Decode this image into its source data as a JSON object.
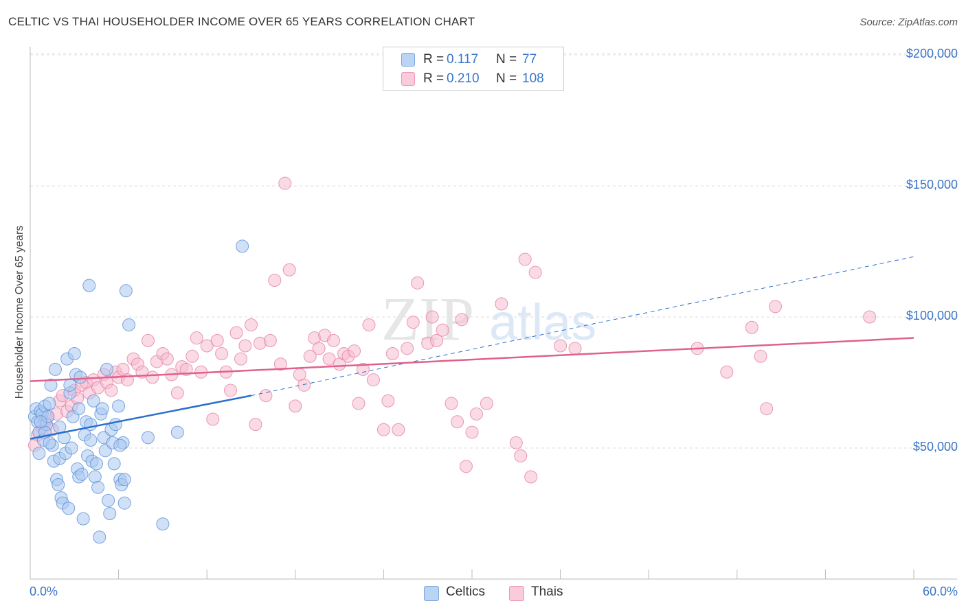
{
  "header": {
    "title": "CELTIC VS THAI HOUSEHOLDER INCOME OVER 65 YEARS CORRELATION CHART",
    "source": "Source: ZipAtlas.com"
  },
  "watermark": {
    "zip": "ZIP",
    "atlas": "atlas"
  },
  "legend_top": {
    "rows": [
      {
        "r_label": "R =",
        "r_value": "0.117",
        "n_label": "N =",
        "n_value": "77"
      },
      {
        "r_label": "R =",
        "r_value": "0.210",
        "n_label": "N =",
        "n_value": "108"
      }
    ]
  },
  "legend_bottom": {
    "items": [
      "Celtics",
      "Thais"
    ]
  },
  "colors": {
    "celtic_fill": "#a9c8f0",
    "celtic_stroke": "#5a8fd6",
    "celtic_line": "#2a6fcc",
    "thai_fill": "#f6bcd0",
    "thai_stroke": "#e57fa3",
    "thai_line": "#e0608e",
    "axis_text": "#3a75c4",
    "grid": "#dddddd"
  },
  "chart_data": {
    "type": "scatter",
    "title": "CELTIC VS THAI HOUSEHOLDER INCOME OVER 65 YEARS CORRELATION CHART",
    "xlabel": "",
    "ylabel": "Householder Income Over 65 years",
    "xlim": [
      0,
      60
    ],
    "ylim": [
      0,
      210000
    ],
    "x_tick_labels": [
      "0.0%",
      "60.0%"
    ],
    "y_ticks": [
      50000,
      100000,
      150000,
      200000
    ],
    "y_tick_labels": [
      "$50,000",
      "$100,000",
      "$150,000",
      "$200,000"
    ],
    "grid": true,
    "legend_position": "top-center",
    "series": [
      {
        "name": "Celtics",
        "R": 0.117,
        "N": 77,
        "trend": {
          "x": [
            0,
            15
          ],
          "y": [
            53500,
            70000
          ],
          "dashed_to": [
            60,
            123000
          ]
        },
        "points": [
          [
            0.3,
            62000
          ],
          [
            0.4,
            65000
          ],
          [
            0.5,
            60000
          ],
          [
            0.6,
            56000
          ],
          [
            0.7,
            64000
          ],
          [
            0.8,
            63000
          ],
          [
            0.9,
            53000
          ],
          [
            1.0,
            66000
          ],
          [
            1.1,
            59000
          ],
          [
            1.2,
            62000
          ],
          [
            1.3,
            67000
          ],
          [
            1.4,
            74000
          ],
          [
            1.5,
            51000
          ],
          [
            1.6,
            45000
          ],
          [
            1.7,
            80000
          ],
          [
            1.8,
            38000
          ],
          [
            1.9,
            36000
          ],
          [
            2.0,
            46000
          ],
          [
            2.1,
            31000
          ],
          [
            2.2,
            29000
          ],
          [
            2.3,
            54000
          ],
          [
            2.4,
            48000
          ],
          [
            2.5,
            84000
          ],
          [
            2.6,
            27000
          ],
          [
            2.7,
            71000
          ],
          [
            2.8,
            50000
          ],
          [
            2.9,
            62000
          ],
          [
            3.0,
            86000
          ],
          [
            3.1,
            78000
          ],
          [
            3.2,
            42000
          ],
          [
            3.3,
            39000
          ],
          [
            3.4,
            77000
          ],
          [
            3.5,
            40000
          ],
          [
            3.6,
            23000
          ],
          [
            3.7,
            55000
          ],
          [
            3.8,
            60000
          ],
          [
            3.9,
            47000
          ],
          [
            4.0,
            112000
          ],
          [
            4.1,
            53000
          ],
          [
            4.2,
            45000
          ],
          [
            4.3,
            68000
          ],
          [
            4.4,
            39000
          ],
          [
            4.5,
            44000
          ],
          [
            4.6,
            35000
          ],
          [
            4.7,
            16000
          ],
          [
            4.8,
            63000
          ],
          [
            4.9,
            65000
          ],
          [
            5.0,
            54000
          ],
          [
            5.1,
            49000
          ],
          [
            5.2,
            80000
          ],
          [
            5.3,
            30000
          ],
          [
            5.4,
            25000
          ],
          [
            5.5,
            57000
          ],
          [
            5.6,
            52000
          ],
          [
            5.7,
            44000
          ],
          [
            5.8,
            59000
          ],
          [
            6.0,
            66000
          ],
          [
            6.1,
            38000
          ],
          [
            6.2,
            36000
          ],
          [
            6.3,
            52000
          ],
          [
            6.4,
            29000
          ],
          [
            6.5,
            110000
          ],
          [
            6.7,
            97000
          ],
          [
            6.1,
            51000
          ],
          [
            3.3,
            65000
          ],
          [
            2.0,
            58000
          ],
          [
            1.0,
            56000
          ],
          [
            0.7,
            60000
          ],
          [
            2.7,
            74000
          ],
          [
            1.3,
            52000
          ],
          [
            6.4,
            38000
          ],
          [
            8.0,
            54000
          ],
          [
            9.0,
            21000
          ],
          [
            10.0,
            56000
          ],
          [
            14.4,
            127000
          ],
          [
            0.6,
            48000
          ],
          [
            4.1,
            59000
          ]
        ]
      },
      {
        "name": "Thais",
        "R": 0.21,
        "N": 108,
        "trend": {
          "x": [
            0,
            60
          ],
          "y": [
            75500,
            92000
          ]
        },
        "points": [
          [
            0.3,
            51000
          ],
          [
            0.5,
            55000
          ],
          [
            0.8,
            58000
          ],
          [
            1.0,
            60000
          ],
          [
            1.2,
            62000
          ],
          [
            1.5,
            57000
          ],
          [
            1.8,
            63000
          ],
          [
            2.0,
            68000
          ],
          [
            2.2,
            70000
          ],
          [
            2.5,
            64000
          ],
          [
            2.8,
            66000
          ],
          [
            3.0,
            72000
          ],
          [
            3.2,
            69000
          ],
          [
            3.5,
            74000
          ],
          [
            3.8,
            75000
          ],
          [
            4.0,
            71000
          ],
          [
            4.3,
            76000
          ],
          [
            4.6,
            73000
          ],
          [
            5.0,
            78000
          ],
          [
            5.2,
            75000
          ],
          [
            5.5,
            72000
          ],
          [
            5.8,
            79000
          ],
          [
            6.0,
            77000
          ],
          [
            6.3,
            80000
          ],
          [
            6.6,
            76000
          ],
          [
            7.0,
            84000
          ],
          [
            7.3,
            82000
          ],
          [
            7.6,
            79000
          ],
          [
            8.0,
            91000
          ],
          [
            8.3,
            77000
          ],
          [
            8.6,
            83000
          ],
          [
            9.0,
            86000
          ],
          [
            9.3,
            84000
          ],
          [
            9.6,
            78000
          ],
          [
            10.0,
            71000
          ],
          [
            10.3,
            81000
          ],
          [
            10.6,
            80000
          ],
          [
            11.0,
            85000
          ],
          [
            11.3,
            92000
          ],
          [
            11.6,
            79000
          ],
          [
            12.0,
            89000
          ],
          [
            12.4,
            61000
          ],
          [
            12.7,
            91000
          ],
          [
            13.0,
            86000
          ],
          [
            13.3,
            79000
          ],
          [
            13.6,
            72000
          ],
          [
            14.0,
            94000
          ],
          [
            14.3,
            84000
          ],
          [
            14.6,
            89000
          ],
          [
            15.0,
            97000
          ],
          [
            15.3,
            59000
          ],
          [
            15.6,
            90000
          ],
          [
            16.0,
            70000
          ],
          [
            16.3,
            91000
          ],
          [
            16.6,
            114000
          ],
          [
            17.0,
            82000
          ],
          [
            17.3,
            151000
          ],
          [
            17.6,
            118000
          ],
          [
            18.0,
            66000
          ],
          [
            18.3,
            78000
          ],
          [
            18.6,
            74000
          ],
          [
            19.0,
            85000
          ],
          [
            19.3,
            92000
          ],
          [
            19.6,
            88000
          ],
          [
            20.0,
            93000
          ],
          [
            20.3,
            84000
          ],
          [
            20.6,
            91000
          ],
          [
            21.0,
            82000
          ],
          [
            21.3,
            86000
          ],
          [
            21.6,
            85000
          ],
          [
            22.0,
            87000
          ],
          [
            22.3,
            67000
          ],
          [
            22.6,
            80000
          ],
          [
            23.0,
            97000
          ],
          [
            23.3,
            76000
          ],
          [
            24.0,
            57000
          ],
          [
            24.3,
            68000
          ],
          [
            24.6,
            86000
          ],
          [
            25.0,
            57000
          ],
          [
            25.6,
            88000
          ],
          [
            26.0,
            98000
          ],
          [
            26.3,
            113000
          ],
          [
            27.0,
            90000
          ],
          [
            27.3,
            100000
          ],
          [
            27.6,
            91000
          ],
          [
            28.0,
            95000
          ],
          [
            28.6,
            67000
          ],
          [
            29.0,
            60000
          ],
          [
            29.3,
            99000
          ],
          [
            29.6,
            43000
          ],
          [
            30.0,
            56000
          ],
          [
            30.3,
            63000
          ],
          [
            31.0,
            67000
          ],
          [
            32.0,
            105000
          ],
          [
            33.0,
            52000
          ],
          [
            33.3,
            47000
          ],
          [
            33.6,
            122000
          ],
          [
            34.0,
            39000
          ],
          [
            34.3,
            117000
          ],
          [
            36.0,
            89000
          ],
          [
            37.0,
            88000
          ],
          [
            45.3,
            88000
          ],
          [
            47.3,
            79000
          ],
          [
            49.0,
            96000
          ],
          [
            49.6,
            85000
          ],
          [
            50.0,
            65000
          ],
          [
            50.6,
            104000
          ],
          [
            57.0,
            100000
          ]
        ]
      }
    ]
  }
}
